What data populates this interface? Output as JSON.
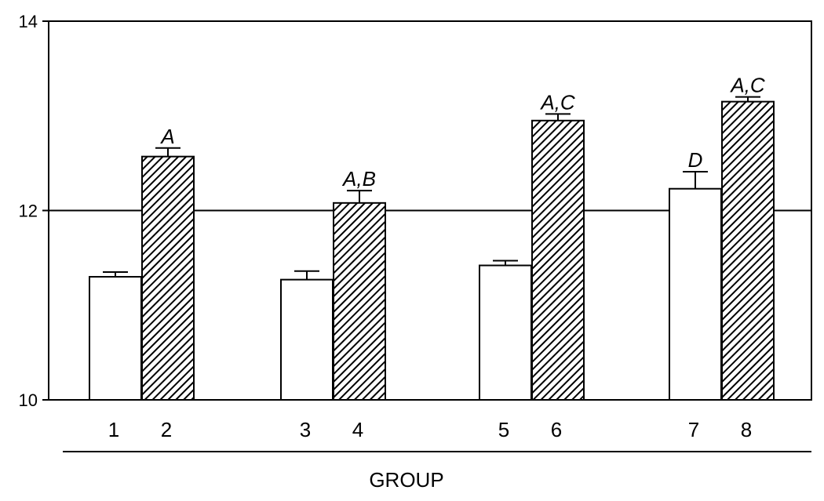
{
  "chart_data": {
    "type": "bar",
    "title": "",
    "xlabel": "GROUP",
    "ylabel": "",
    "ylim": [
      10,
      14
    ],
    "yticks": [
      "10",
      "12",
      "14"
    ],
    "reference_line": 12,
    "categories": [
      "1",
      "2",
      "3",
      "4",
      "5",
      "6",
      "7",
      "8"
    ],
    "values": [
      11.3,
      12.57,
      11.27,
      12.08,
      11.42,
      12.95,
      12.23,
      13.15
    ],
    "errors": [
      0.05,
      0.09,
      0.09,
      0.13,
      0.05,
      0.07,
      0.18,
      0.05
    ],
    "annotations": [
      "",
      "A",
      "",
      "A,B",
      "",
      "A,C",
      "D",
      "A,C"
    ],
    "fill": [
      "open",
      "hatched",
      "open",
      "hatched",
      "open",
      "hatched",
      "open",
      "hatched"
    ],
    "grid": false
  }
}
